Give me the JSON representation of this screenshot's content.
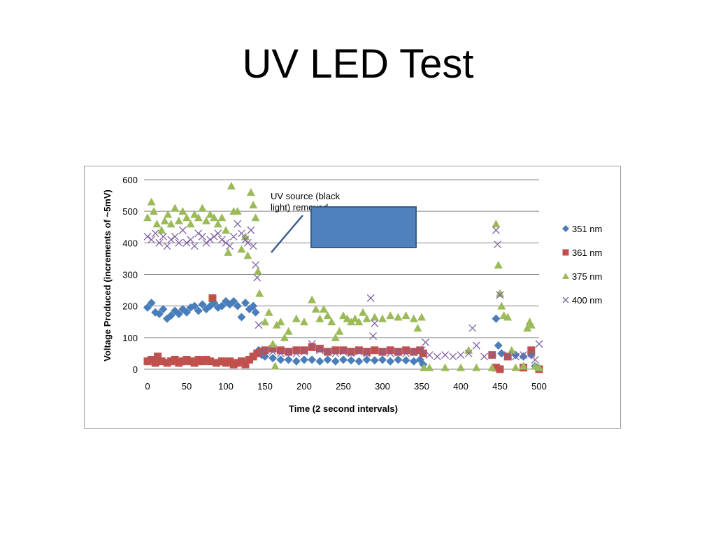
{
  "slide": {
    "title": "UV LED Test"
  },
  "colors": {
    "s351": "#4a7ebb",
    "s361": "#c0504d",
    "s375": "#9bbb59",
    "s400": "#8064a2",
    "grid": "#868686",
    "box_fill": "#4f81bd",
    "box_stroke": "#385d8a",
    "arrow": "#385d8a"
  },
  "chart_data": {
    "type": "scatter",
    "title": "",
    "xlabel": "Time (2 second intervals)",
    "ylabel": "Voltage Produced (increments of ~5mV)",
    "xlim": [
      0,
      500
    ],
    "ylim": [
      0,
      600
    ],
    "x_ticks": [
      "0",
      "50",
      "100",
      "150",
      "200",
      "250",
      "300",
      "350",
      "400",
      "450",
      "500"
    ],
    "y_ticks": [
      "0",
      "100",
      "200",
      "300",
      "400",
      "500",
      "600"
    ],
    "grid": "horizontal",
    "legend_position": "right",
    "annotation": "UV source (black light) removed",
    "series": [
      {
        "name": "351 nm",
        "marker": "diamond",
        "points": [
          [
            0,
            195
          ],
          [
            5,
            210
          ],
          [
            10,
            180
          ],
          [
            15,
            175
          ],
          [
            20,
            190
          ],
          [
            25,
            160
          ],
          [
            30,
            170
          ],
          [
            35,
            185
          ],
          [
            40,
            175
          ],
          [
            45,
            190
          ],
          [
            50,
            180
          ],
          [
            55,
            195
          ],
          [
            60,
            200
          ],
          [
            65,
            185
          ],
          [
            70,
            205
          ],
          [
            75,
            190
          ],
          [
            80,
            200
          ],
          [
            85,
            210
          ],
          [
            90,
            195
          ],
          [
            95,
            200
          ],
          [
            100,
            215
          ],
          [
            105,
            205
          ],
          [
            110,
            215
          ],
          [
            115,
            200
          ],
          [
            120,
            165
          ],
          [
            125,
            210
          ],
          [
            130,
            190
          ],
          [
            135,
            200
          ],
          [
            138,
            180
          ],
          [
            142,
            60
          ],
          [
            146,
            45
          ],
          [
            150,
            40
          ],
          [
            160,
            35
          ],
          [
            170,
            30
          ],
          [
            180,
            30
          ],
          [
            190,
            25
          ],
          [
            200,
            30
          ],
          [
            210,
            30
          ],
          [
            220,
            25
          ],
          [
            230,
            30
          ],
          [
            240,
            25
          ],
          [
            250,
            30
          ],
          [
            260,
            28
          ],
          [
            270,
            25
          ],
          [
            280,
            30
          ],
          [
            290,
            28
          ],
          [
            300,
            30
          ],
          [
            310,
            25
          ],
          [
            320,
            30
          ],
          [
            330,
            28
          ],
          [
            340,
            25
          ],
          [
            348,
            30
          ],
          [
            352,
            15
          ],
          [
            445,
            160
          ],
          [
            448,
            75
          ],
          [
            452,
            50
          ],
          [
            470,
            45
          ],
          [
            480,
            40
          ],
          [
            490,
            45
          ],
          [
            495,
            10
          ]
        ]
      },
      {
        "name": "361 nm",
        "marker": "square",
        "points": [
          [
            0,
            25
          ],
          [
            5,
            30
          ],
          [
            10,
            20
          ],
          [
            13,
            40
          ],
          [
            18,
            25
          ],
          [
            25,
            20
          ],
          [
            30,
            25
          ],
          [
            35,
            30
          ],
          [
            40,
            20
          ],
          [
            45,
            25
          ],
          [
            50,
            30
          ],
          [
            55,
            25
          ],
          [
            60,
            20
          ],
          [
            65,
            30
          ],
          [
            70,
            25
          ],
          [
            75,
            30
          ],
          [
            80,
            25
          ],
          [
            83,
            225
          ],
          [
            88,
            20
          ],
          [
            95,
            25
          ],
          [
            100,
            20
          ],
          [
            105,
            25
          ],
          [
            110,
            15
          ],
          [
            115,
            20
          ],
          [
            120,
            25
          ],
          [
            125,
            15
          ],
          [
            130,
            30
          ],
          [
            135,
            40
          ],
          [
            140,
            50
          ],
          [
            145,
            55
          ],
          [
            150,
            60
          ],
          [
            160,
            65
          ],
          [
            170,
            60
          ],
          [
            180,
            55
          ],
          [
            190,
            60
          ],
          [
            200,
            60
          ],
          [
            210,
            70
          ],
          [
            220,
            65
          ],
          [
            230,
            55
          ],
          [
            240,
            60
          ],
          [
            250,
            60
          ],
          [
            260,
            55
          ],
          [
            270,
            60
          ],
          [
            280,
            55
          ],
          [
            290,
            60
          ],
          [
            300,
            55
          ],
          [
            310,
            60
          ],
          [
            320,
            55
          ],
          [
            330,
            60
          ],
          [
            340,
            55
          ],
          [
            348,
            60
          ],
          [
            352,
            50
          ],
          [
            440,
            45
          ],
          [
            445,
            5
          ],
          [
            450,
            0
          ],
          [
            460,
            40
          ],
          [
            480,
            5
          ],
          [
            490,
            60
          ],
          [
            500,
            0
          ]
        ]
      },
      {
        "name": "375 nm",
        "marker": "triangle",
        "points": [
          [
            0,
            480
          ],
          [
            5,
            530
          ],
          [
            8,
            500
          ],
          [
            12,
            460
          ],
          [
            18,
            440
          ],
          [
            22,
            470
          ],
          [
            26,
            490
          ],
          [
            30,
            460
          ],
          [
            35,
            510
          ],
          [
            40,
            470
          ],
          [
            45,
            500
          ],
          [
            50,
            480
          ],
          [
            55,
            460
          ],
          [
            60,
            490
          ],
          [
            65,
            480
          ],
          [
            70,
            510
          ],
          [
            75,
            470
          ],
          [
            80,
            490
          ],
          [
            85,
            480
          ],
          [
            90,
            460
          ],
          [
            95,
            480
          ],
          [
            100,
            440
          ],
          [
            103,
            370
          ],
          [
            107,
            580
          ],
          [
            110,
            500
          ],
          [
            115,
            500
          ],
          [
            120,
            380
          ],
          [
            125,
            420
          ],
          [
            128,
            360
          ],
          [
            132,
            560
          ],
          [
            135,
            520
          ],
          [
            138,
            480
          ],
          [
            141,
            310
          ],
          [
            143,
            240
          ],
          [
            150,
            150
          ],
          [
            155,
            180
          ],
          [
            160,
            80
          ],
          [
            163,
            10
          ],
          [
            165,
            140
          ],
          [
            170,
            150
          ],
          [
            175,
            100
          ],
          [
            180,
            120
          ],
          [
            190,
            160
          ],
          [
            200,
            150
          ],
          [
            210,
            220
          ],
          [
            215,
            190
          ],
          [
            220,
            160
          ],
          [
            225,
            190
          ],
          [
            230,
            170
          ],
          [
            235,
            150
          ],
          [
            240,
            100
          ],
          [
            245,
            120
          ],
          [
            250,
            170
          ],
          [
            255,
            160
          ],
          [
            260,
            150
          ],
          [
            265,
            160
          ],
          [
            270,
            150
          ],
          [
            275,
            180
          ],
          [
            280,
            160
          ],
          [
            290,
            165
          ],
          [
            300,
            160
          ],
          [
            310,
            170
          ],
          [
            320,
            165
          ],
          [
            330,
            170
          ],
          [
            340,
            160
          ],
          [
            345,
            130
          ],
          [
            350,
            165
          ],
          [
            353,
            5
          ],
          [
            360,
            5
          ],
          [
            380,
            5
          ],
          [
            400,
            5
          ],
          [
            410,
            60
          ],
          [
            420,
            5
          ],
          [
            440,
            5
          ],
          [
            445,
            460
          ],
          [
            448,
            330
          ],
          [
            450,
            240
          ],
          [
            452,
            200
          ],
          [
            455,
            170
          ],
          [
            460,
            165
          ],
          [
            465,
            60
          ],
          [
            470,
            5
          ],
          [
            480,
            10
          ],
          [
            485,
            130
          ],
          [
            488,
            150
          ],
          [
            490,
            140
          ],
          [
            495,
            10
          ],
          [
            500,
            5
          ]
        ]
      },
      {
        "name": "400 nm",
        "marker": "x",
        "points": [
          [
            0,
            420
          ],
          [
            5,
            410
          ],
          [
            10,
            430
          ],
          [
            15,
            400
          ],
          [
            20,
            420
          ],
          [
            25,
            390
          ],
          [
            30,
            410
          ],
          [
            35,
            420
          ],
          [
            40,
            400
          ],
          [
            45,
            440
          ],
          [
            50,
            400
          ],
          [
            55,
            410
          ],
          [
            60,
            390
          ],
          [
            65,
            430
          ],
          [
            70,
            420
          ],
          [
            75,
            400
          ],
          [
            80,
            410
          ],
          [
            85,
            420
          ],
          [
            90,
            430
          ],
          [
            95,
            410
          ],
          [
            100,
            400
          ],
          [
            105,
            390
          ],
          [
            110,
            420
          ],
          [
            115,
            460
          ],
          [
            120,
            430
          ],
          [
            125,
            410
          ],
          [
            128,
            400
          ],
          [
            132,
            440
          ],
          [
            135,
            390
          ],
          [
            138,
            330
          ],
          [
            140,
            290
          ],
          [
            142,
            140
          ],
          [
            146,
            50
          ],
          [
            150,
            60
          ],
          [
            160,
            55
          ],
          [
            170,
            50
          ],
          [
            180,
            55
          ],
          [
            190,
            50
          ],
          [
            200,
            55
          ],
          [
            210,
            80
          ],
          [
            220,
            60
          ],
          [
            230,
            55
          ],
          [
            240,
            50
          ],
          [
            250,
            55
          ],
          [
            260,
            50
          ],
          [
            270,
            55
          ],
          [
            280,
            50
          ],
          [
            285,
            225
          ],
          [
            288,
            105
          ],
          [
            290,
            145
          ],
          [
            300,
            55
          ],
          [
            310,
            50
          ],
          [
            320,
            55
          ],
          [
            330,
            50
          ],
          [
            340,
            55
          ],
          [
            350,
            60
          ],
          [
            355,
            85
          ],
          [
            360,
            45
          ],
          [
            370,
            40
          ],
          [
            380,
            45
          ],
          [
            390,
            40
          ],
          [
            400,
            45
          ],
          [
            410,
            50
          ],
          [
            415,
            130
          ],
          [
            420,
            75
          ],
          [
            430,
            40
          ],
          [
            440,
            45
          ],
          [
            445,
            440
          ],
          [
            447,
            395
          ],
          [
            450,
            235
          ],
          [
            460,
            45
          ],
          [
            470,
            40
          ],
          [
            480,
            45
          ],
          [
            490,
            50
          ],
          [
            495,
            30
          ],
          [
            500,
            80
          ]
        ]
      }
    ]
  }
}
